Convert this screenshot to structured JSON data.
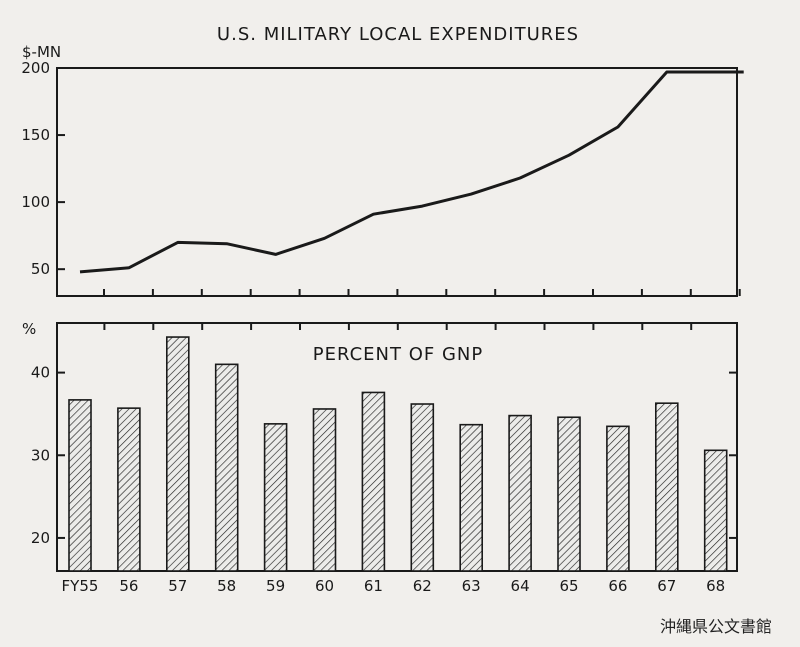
{
  "watermark": "沖縄県公文書館",
  "chart_data": [
    {
      "type": "line",
      "title": "U.S. MILITARY LOCAL EXPENDITURES",
      "ylabel": "$-MN",
      "ylim": [
        30,
        200
      ],
      "yticks": [
        50,
        100,
        150,
        200
      ],
      "x": [
        "FY55",
        "56",
        "57",
        "58",
        "59",
        "60",
        "61",
        "62",
        "63",
        "64",
        "65",
        "66",
        "67",
        "68"
      ],
      "values": [
        48,
        51,
        70,
        69,
        61,
        73,
        91,
        97,
        106,
        118,
        135,
        156,
        197,
        197
      ],
      "grid": false
    },
    {
      "type": "bar",
      "title": "PERCENT OF GNP",
      "ylabel": "%",
      "ylim": [
        16,
        46
      ],
      "yticks": [
        20,
        30,
        40
      ],
      "categories": [
        "FY55",
        "56",
        "57",
        "58",
        "59",
        "60",
        "61",
        "62",
        "63",
        "64",
        "65",
        "66",
        "67",
        "68"
      ],
      "values": [
        36.7,
        35.7,
        44.3,
        41.0,
        33.8,
        35.6,
        37.6,
        36.2,
        33.7,
        34.8,
        34.6,
        33.5,
        36.3,
        30.6
      ],
      "pattern": "hatched",
      "grid": false
    }
  ]
}
